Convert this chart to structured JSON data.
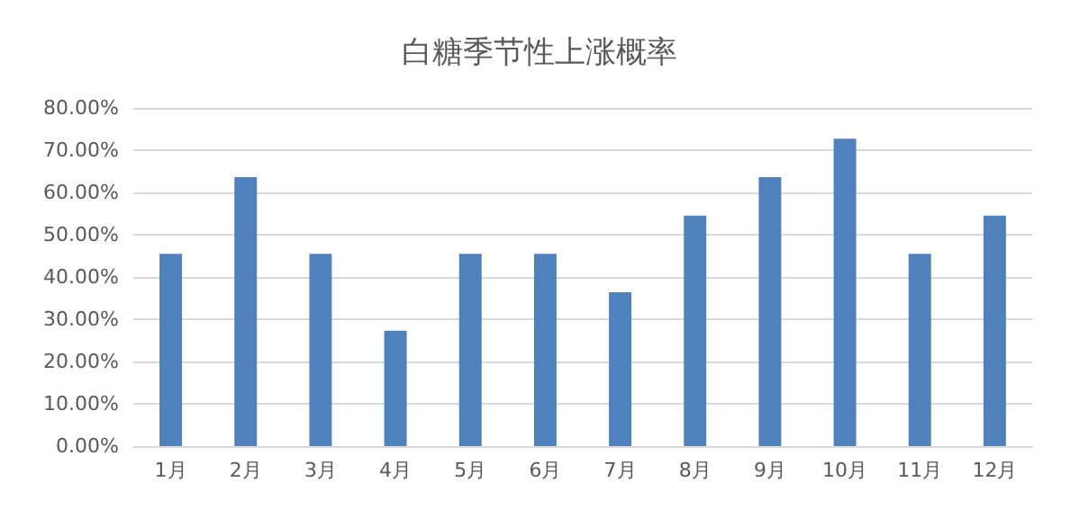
{
  "chart_data": {
    "type": "bar",
    "title": "白糖季节性上涨概率",
    "categories": [
      "1月",
      "2月",
      "3月",
      "4月",
      "5月",
      "6月",
      "7月",
      "8月",
      "9月",
      "10月",
      "11月",
      "12月"
    ],
    "values": [
      45.5,
      63.6,
      45.5,
      27.3,
      45.5,
      45.5,
      36.4,
      54.5,
      63.6,
      72.7,
      45.5,
      54.5
    ],
    "color": "#4f81bd",
    "ylim": [
      0,
      80
    ],
    "yticks": [
      {
        "value": 0,
        "label": "0.00%"
      },
      {
        "value": 10,
        "label": "10.00%"
      },
      {
        "value": 20,
        "label": "20.00%"
      },
      {
        "value": 30,
        "label": "30.00%"
      },
      {
        "value": 40,
        "label": "40.00%"
      },
      {
        "value": 50,
        "label": "50.00%"
      },
      {
        "value": 60,
        "label": "60.00%"
      },
      {
        "value": 70,
        "label": "70.00%"
      },
      {
        "value": 80,
        "label": "80.00%"
      }
    ],
    "grid": true
  }
}
